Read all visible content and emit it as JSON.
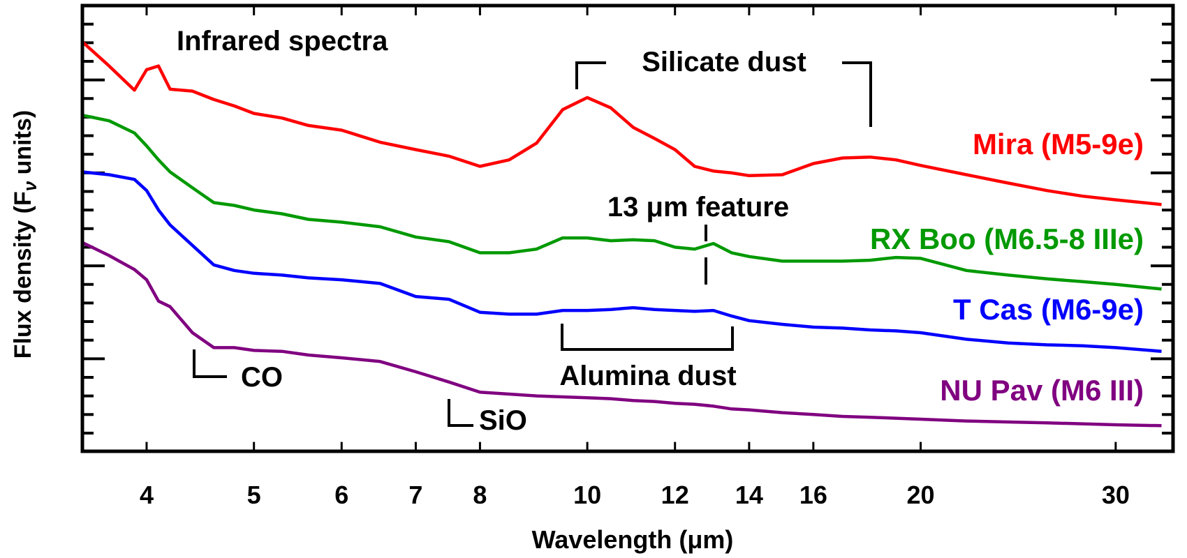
{
  "chart_data": {
    "type": "line",
    "title": "Infrared spectra",
    "xlabel": "Wavelength (μm)",
    "ylabel_parts": [
      "Flux density (F",
      "ν",
      " units)"
    ],
    "xscale": "log",
    "xlim": [
      3.5,
      33.8
    ],
    "ylim": [
      0,
      4.8
    ],
    "x_ticks": [
      4,
      5,
      6,
      7,
      8,
      10,
      12,
      14,
      16,
      20,
      30
    ],
    "x_tick_labels": [
      "4",
      "5",
      "6",
      "7",
      "8",
      "10",
      "12",
      "14",
      "16",
      "20",
      "30"
    ],
    "y_tick_labels_shown": false,
    "y_major_step": 1,
    "y_minor_step": 0.2,
    "grid": false,
    "x": [
      3.5,
      3.7,
      3.9,
      4.0,
      4.1,
      4.2,
      4.4,
      4.6,
      4.8,
      5,
      5.3,
      5.6,
      6,
      6.5,
      7,
      7.5,
      8,
      8.5,
      9,
      9.5,
      10,
      10.5,
      11,
      11.5,
      12,
      12.5,
      13,
      13.5,
      14,
      15,
      16,
      17,
      18,
      19,
      20,
      22,
      24,
      26,
      28,
      30,
      33
    ],
    "series": [
      {
        "name": "Mira (M5-9e)",
        "color": "#ff0000",
        "values": [
          4.41,
          4.15,
          3.89,
          4.11,
          4.15,
          3.9,
          3.88,
          3.79,
          3.72,
          3.64,
          3.59,
          3.51,
          3.46,
          3.33,
          3.25,
          3.18,
          3.07,
          3.14,
          3.32,
          3.68,
          3.81,
          3.7,
          3.49,
          3.37,
          3.25,
          3.07,
          3.02,
          3.0,
          2.97,
          2.98,
          3.1,
          3.16,
          3.17,
          3.14,
          3.08,
          2.98,
          2.89,
          2.81,
          2.75,
          2.71,
          2.66
        ]
      },
      {
        "name": "RX Boo (M6.5-8 IIIe)",
        "color": "#009900",
        "values": [
          3.62,
          3.56,
          3.43,
          3.29,
          3.14,
          3.01,
          2.84,
          2.68,
          2.65,
          2.6,
          2.56,
          2.5,
          2.47,
          2.42,
          2.31,
          2.26,
          2.14,
          2.14,
          2.18,
          2.3,
          2.3,
          2.27,
          2.28,
          2.27,
          2.2,
          2.18,
          2.24,
          2.14,
          2.1,
          2.05,
          2.05,
          2.05,
          2.06,
          2.09,
          2.08,
          1.95,
          1.9,
          1.86,
          1.83,
          1.8,
          1.75
        ]
      },
      {
        "name": "T Cas (M6-9e)",
        "color": "#0000ff",
        "values": [
          3.01,
          2.98,
          2.93,
          2.81,
          2.6,
          2.44,
          2.22,
          2.01,
          1.95,
          1.92,
          1.9,
          1.87,
          1.85,
          1.81,
          1.67,
          1.64,
          1.5,
          1.48,
          1.48,
          1.52,
          1.52,
          1.53,
          1.55,
          1.53,
          1.52,
          1.51,
          1.52,
          1.46,
          1.41,
          1.37,
          1.34,
          1.33,
          1.31,
          1.3,
          1.28,
          1.21,
          1.17,
          1.15,
          1.14,
          1.12,
          1.08
        ]
      },
      {
        "name": "NU Pav (M6 III)",
        "color": "#800080",
        "values": [
          2.25,
          2.11,
          1.96,
          1.85,
          1.62,
          1.56,
          1.28,
          1.12,
          1.12,
          1.09,
          1.08,
          1.04,
          1.01,
          0.97,
          0.86,
          0.75,
          0.64,
          0.62,
          0.6,
          0.59,
          0.58,
          0.57,
          0.55,
          0.54,
          0.52,
          0.51,
          0.49,
          0.46,
          0.45,
          0.42,
          0.4,
          0.38,
          0.37,
          0.36,
          0.35,
          0.33,
          0.32,
          0.31,
          0.3,
          0.29,
          0.28
        ]
      }
    ],
    "annotations": {
      "silicate": "Silicate dust",
      "feature13": "13 μm feature",
      "alumina": "Alumina dust",
      "co": "CO",
      "sio": "SiO"
    }
  }
}
